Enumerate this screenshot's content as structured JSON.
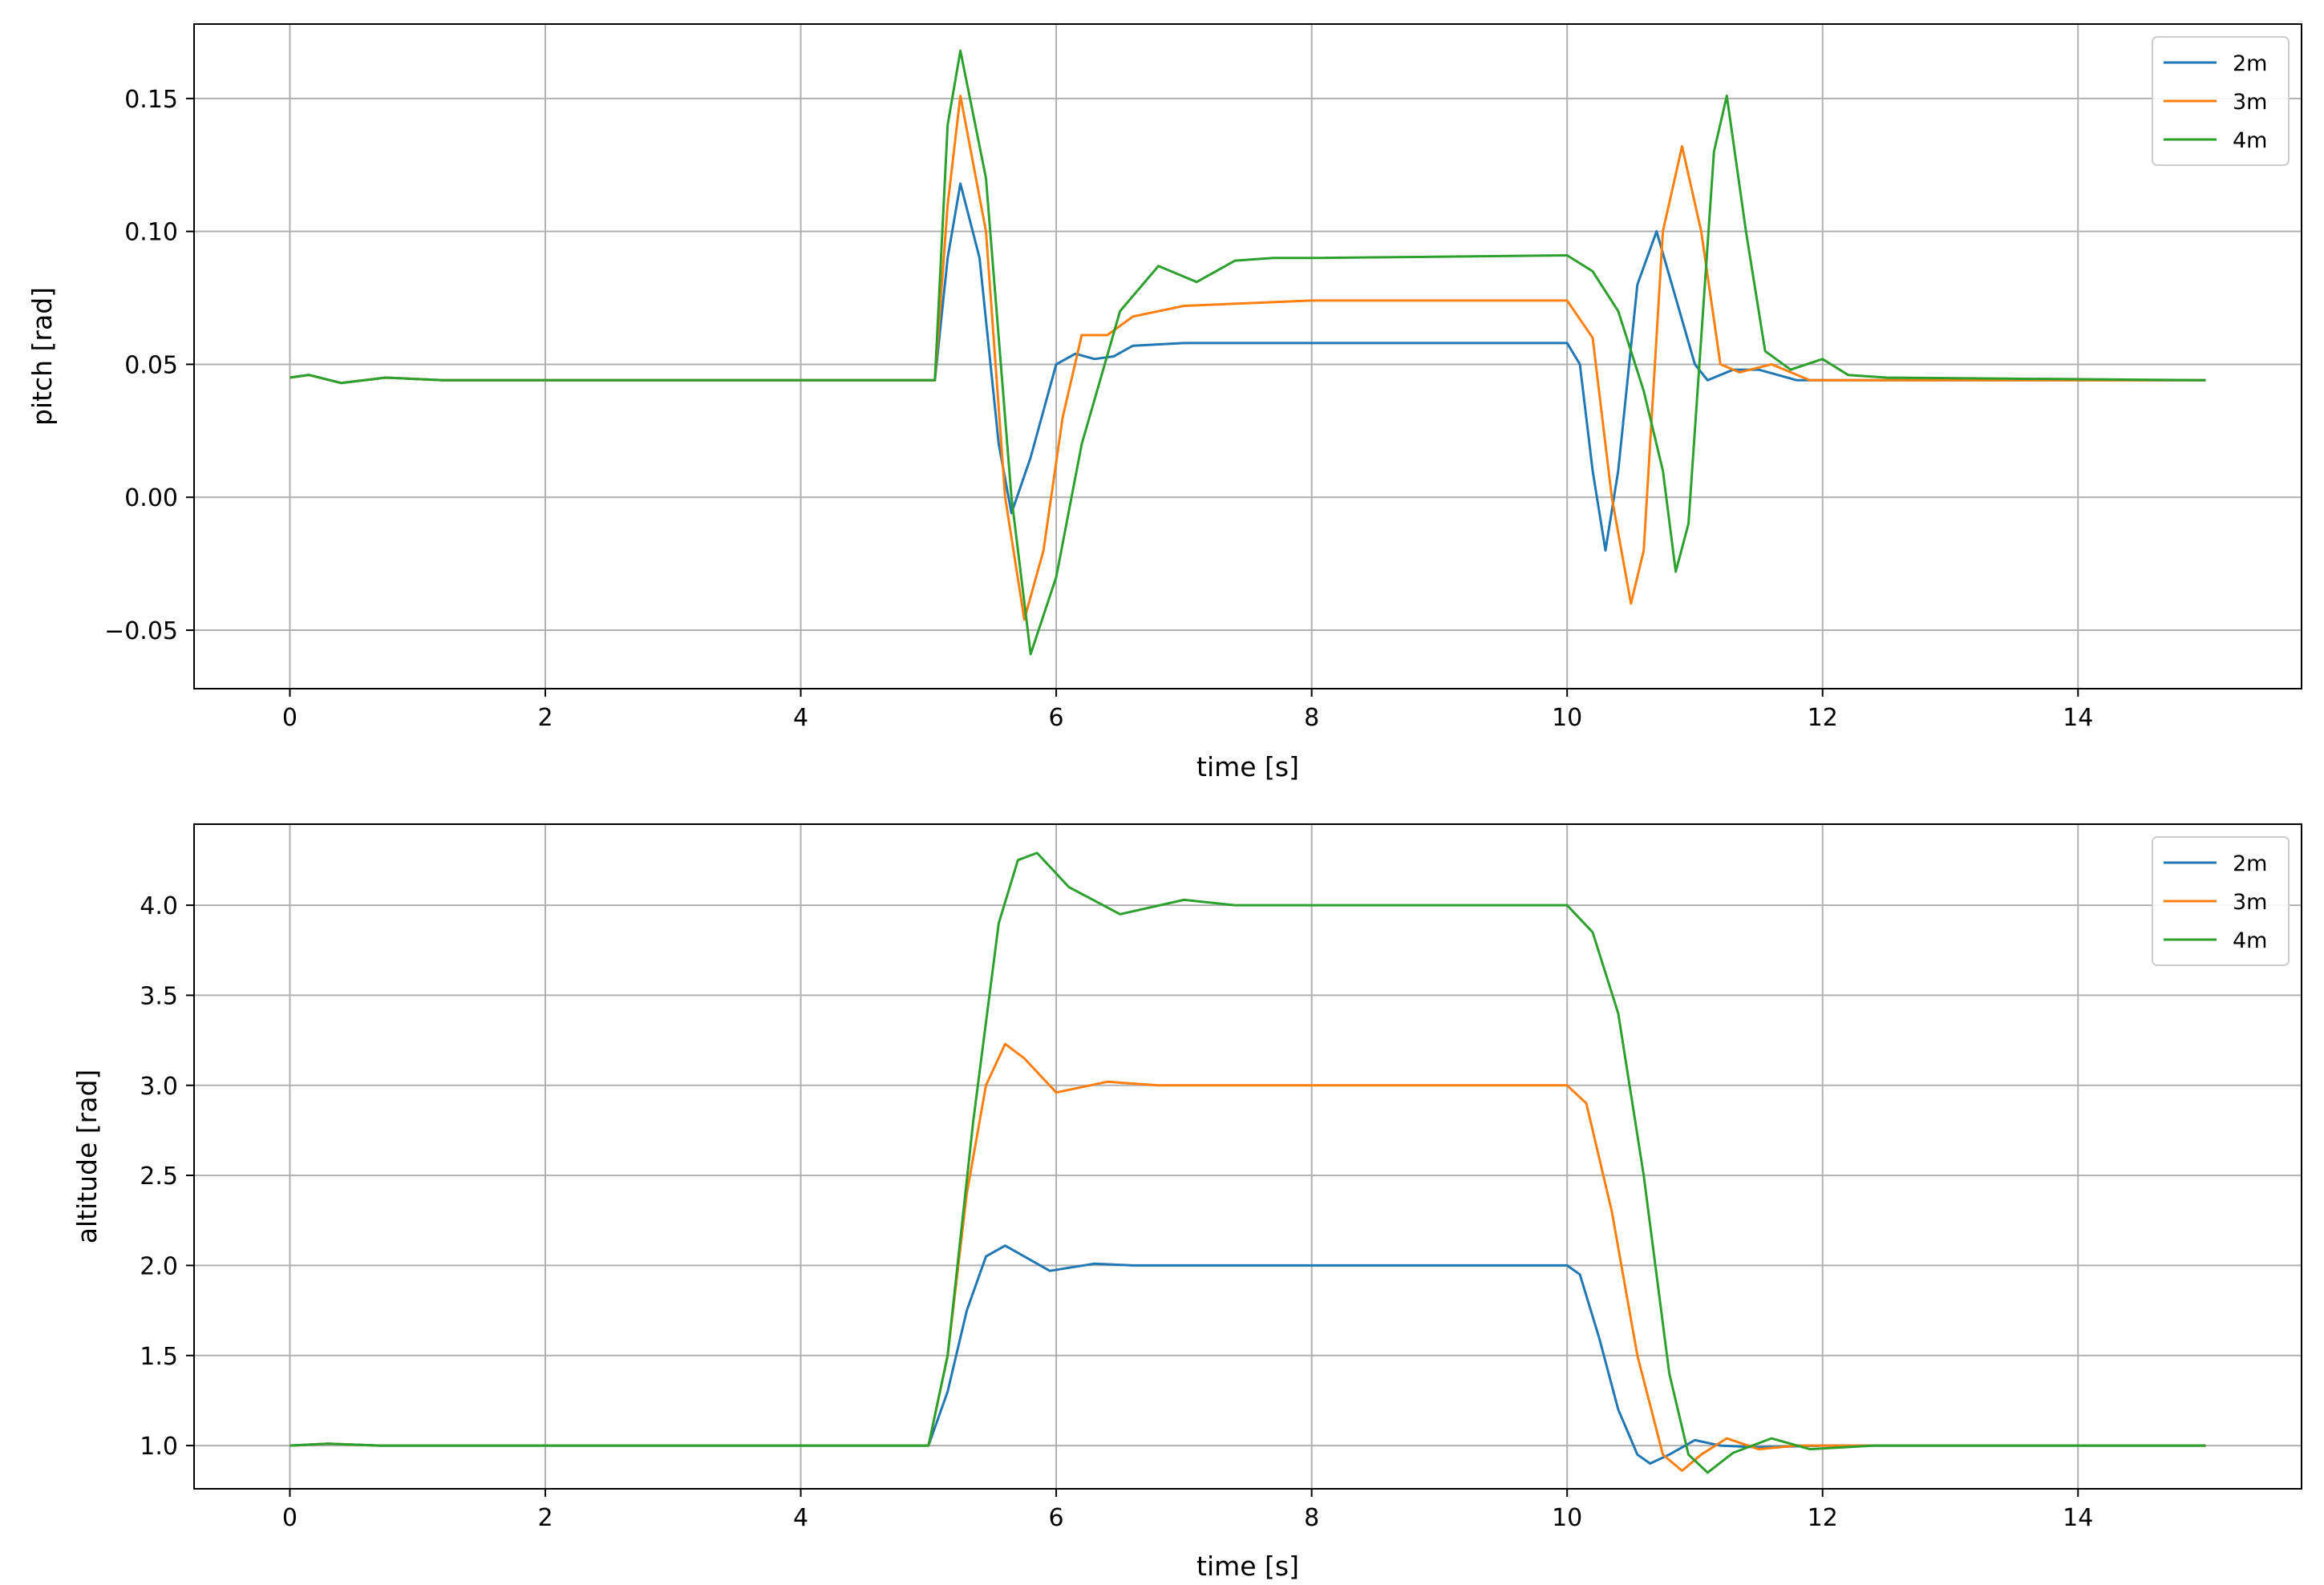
{
  "chart_data": [
    {
      "type": "line",
      "xlabel": "time [s]",
      "ylabel": "pitch [rad]",
      "xlim": [
        -0.75,
        15.75
      ],
      "ylim": [
        -0.072,
        0.178
      ],
      "xticks": [
        0,
        2,
        4,
        6,
        8,
        10,
        12,
        14
      ],
      "xtick_labels": [
        "0",
        "2",
        "4",
        "6",
        "8",
        "10",
        "12",
        "14"
      ],
      "yticks": [
        -0.05,
        0.0,
        0.05,
        0.1,
        0.15
      ],
      "ytick_labels": [
        "−0.05",
        "0.00",
        "0.05",
        "0.10",
        "0.15"
      ],
      "grid": true,
      "legend_position": "top-right",
      "series": [
        {
          "name": "2m",
          "color": "#1f77b4",
          "x": [
            0,
            0.15,
            0.4,
            0.75,
            1.2,
            5.05,
            5.15,
            5.25,
            5.4,
            5.55,
            5.65,
            5.8,
            6.0,
            6.15,
            6.3,
            6.45,
            6.6,
            7.0,
            8.0,
            10.0,
            10.1,
            10.2,
            10.3,
            10.4,
            10.55,
            10.7,
            10.85,
            11.0,
            11.1,
            11.3,
            11.5,
            11.8,
            12.2,
            15.0
          ],
          "y": [
            0.045,
            0.046,
            0.043,
            0.045,
            0.044,
            0.044,
            0.09,
            0.118,
            0.09,
            0.02,
            -0.006,
            0.015,
            0.05,
            0.054,
            0.052,
            0.053,
            0.057,
            0.058,
            0.058,
            0.058,
            0.05,
            0.01,
            -0.02,
            0.01,
            0.08,
            0.1,
            0.075,
            0.05,
            0.044,
            0.048,
            0.048,
            0.044,
            0.044,
            0.044
          ]
        },
        {
          "name": "3m",
          "color": "#ff7f0e",
          "x": [
            0,
            0.15,
            0.4,
            0.75,
            1.2,
            5.05,
            5.15,
            5.25,
            5.45,
            5.6,
            5.75,
            5.9,
            6.05,
            6.2,
            6.4,
            6.6,
            7.0,
            8.0,
            10.0,
            10.2,
            10.35,
            10.5,
            10.6,
            10.75,
            10.9,
            11.05,
            11.2,
            11.35,
            11.6,
            11.9,
            12.3,
            15.0
          ],
          "y": [
            0.045,
            0.046,
            0.043,
            0.045,
            0.044,
            0.044,
            0.11,
            0.151,
            0.1,
            0.0,
            -0.046,
            -0.02,
            0.03,
            0.061,
            0.061,
            0.068,
            0.072,
            0.074,
            0.074,
            0.06,
            0.0,
            -0.04,
            -0.02,
            0.1,
            0.132,
            0.1,
            0.05,
            0.047,
            0.05,
            0.044,
            0.044,
            0.044
          ]
        },
        {
          "name": "4m",
          "color": "#2ca02c",
          "x": [
            0,
            0.15,
            0.4,
            0.75,
            1.2,
            5.05,
            5.15,
            5.25,
            5.45,
            5.65,
            5.8,
            6.0,
            6.2,
            6.5,
            6.8,
            7.1,
            7.4,
            7.7,
            8.0,
            10.0,
            10.2,
            10.4,
            10.6,
            10.75,
            10.85,
            10.95,
            11.05,
            11.15,
            11.25,
            11.4,
            11.55,
            11.75,
            12.0,
            12.2,
            12.5,
            15.0
          ],
          "y": [
            0.045,
            0.046,
            0.043,
            0.045,
            0.044,
            0.044,
            0.14,
            0.168,
            0.12,
            0.0,
            -0.059,
            -0.03,
            0.02,
            0.07,
            0.087,
            0.081,
            0.089,
            0.09,
            0.09,
            0.091,
            0.085,
            0.07,
            0.04,
            0.01,
            -0.028,
            -0.01,
            0.06,
            0.13,
            0.151,
            0.1,
            0.055,
            0.048,
            0.052,
            0.046,
            0.045,
            0.044
          ]
        }
      ]
    },
    {
      "type": "line",
      "xlabel": "time [s]",
      "ylabel": "altitude [rad]",
      "xlim": [
        -0.75,
        15.75
      ],
      "ylim": [
        0.76,
        4.45
      ],
      "xticks": [
        0,
        2,
        4,
        6,
        8,
        10,
        12,
        14
      ],
      "xtick_labels": [
        "0",
        "2",
        "4",
        "6",
        "8",
        "10",
        "12",
        "14"
      ],
      "yticks": [
        1.0,
        1.5,
        2.0,
        2.5,
        3.0,
        3.5,
        4.0
      ],
      "ytick_labels": [
        "1.0",
        "1.5",
        "2.0",
        "2.5",
        "3.0",
        "3.5",
        "4.0"
      ],
      "grid": true,
      "legend_position": "top-right",
      "series": [
        {
          "name": "2m",
          "color": "#1f77b4",
          "x": [
            0,
            0.3,
            0.7,
            5.0,
            5.15,
            5.3,
            5.45,
            5.6,
            5.75,
            5.95,
            6.3,
            6.6,
            7.0,
            10.0,
            10.1,
            10.25,
            10.4,
            10.55,
            10.65,
            10.8,
            11.0,
            11.2,
            11.5,
            12.0,
            15.0
          ],
          "y": [
            1.0,
            1.01,
            1.0,
            1.0,
            1.3,
            1.75,
            2.05,
            2.11,
            2.05,
            1.97,
            2.01,
            2.0,
            2.0,
            2.0,
            1.95,
            1.6,
            1.2,
            0.95,
            0.9,
            0.95,
            1.03,
            1.0,
            0.99,
            1.0,
            1.0
          ]
        },
        {
          "name": "3m",
          "color": "#ff7f0e",
          "x": [
            0,
            0.3,
            0.7,
            5.0,
            5.15,
            5.3,
            5.45,
            5.6,
            5.75,
            6.0,
            6.4,
            6.8,
            7.2,
            10.0,
            10.15,
            10.35,
            10.55,
            10.75,
            10.9,
            11.05,
            11.25,
            11.5,
            11.8,
            12.2,
            15.0
          ],
          "y": [
            1.0,
            1.01,
            1.0,
            1.0,
            1.5,
            2.4,
            3.0,
            3.23,
            3.15,
            2.96,
            3.02,
            3.0,
            3.0,
            3.0,
            2.9,
            2.3,
            1.5,
            0.95,
            0.86,
            0.95,
            1.04,
            0.98,
            1.0,
            1.0,
            1.0
          ]
        },
        {
          "name": "4m",
          "color": "#2ca02c",
          "x": [
            0,
            0.3,
            0.7,
            5.0,
            5.15,
            5.35,
            5.55,
            5.7,
            5.85,
            6.1,
            6.5,
            7.0,
            7.4,
            8.0,
            10.0,
            10.2,
            10.4,
            10.6,
            10.8,
            10.95,
            11.1,
            11.3,
            11.6,
            11.9,
            12.4,
            15.0
          ],
          "y": [
            1.0,
            1.01,
            1.0,
            1.0,
            1.5,
            2.8,
            3.9,
            4.25,
            4.29,
            4.1,
            3.95,
            4.03,
            4.0,
            4.0,
            4.0,
            3.85,
            3.4,
            2.5,
            1.4,
            0.95,
            0.85,
            0.96,
            1.04,
            0.98,
            1.0,
            1.0
          ]
        }
      ]
    }
  ]
}
